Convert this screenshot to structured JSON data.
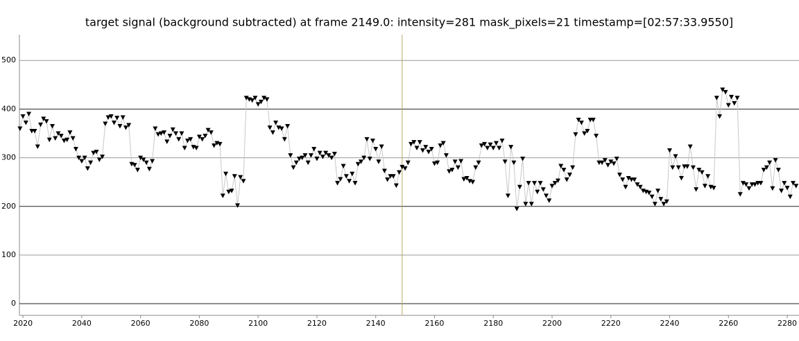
{
  "chart_data": {
    "type": "line",
    "title": "target signal (background subtracted) at frame 2149.0: intensity=281 mask_pixels=21 timestamp=[02:57:33.9550]",
    "x": [
      2019,
      2020,
      2021,
      2022,
      2023,
      2024,
      2025,
      2026,
      2027,
      2028,
      2029,
      2030,
      2031,
      2032,
      2033,
      2034,
      2035,
      2036,
      2037,
      2038,
      2039,
      2040,
      2041,
      2042,
      2043,
      2044,
      2045,
      2046,
      2047,
      2048,
      2049,
      2050,
      2051,
      2052,
      2053,
      2054,
      2055,
      2056,
      2057,
      2058,
      2059,
      2060,
      2061,
      2062,
      2063,
      2064,
      2065,
      2066,
      2067,
      2068,
      2069,
      2070,
      2071,
      2072,
      2073,
      2074,
      2075,
      2076,
      2077,
      2078,
      2079,
      2080,
      2081,
      2082,
      2083,
      2084,
      2085,
      2086,
      2087,
      2088,
      2089,
      2090,
      2091,
      2092,
      2093,
      2094,
      2095,
      2096,
      2097,
      2098,
      2099,
      2100,
      2101,
      2102,
      2103,
      2104,
      2105,
      2106,
      2107,
      2108,
      2109,
      2110,
      2111,
      2112,
      2113,
      2114,
      2115,
      2116,
      2117,
      2118,
      2119,
      2120,
      2121,
      2122,
      2123,
      2124,
      2125,
      2126,
      2127,
      2128,
      2129,
      2130,
      2131,
      2132,
      2133,
      2134,
      2135,
      2136,
      2137,
      2138,
      2139,
      2140,
      2141,
      2142,
      2143,
      2144,
      2145,
      2146,
      2147,
      2148,
      2149,
      2150,
      2151,
      2152,
      2153,
      2154,
      2155,
      2156,
      2157,
      2158,
      2159,
      2160,
      2161,
      2162,
      2163,
      2164,
      2165,
      2166,
      2167,
      2168,
      2169,
      2170,
      2171,
      2172,
      2173,
      2174,
      2175,
      2176,
      2177,
      2178,
      2179,
      2180,
      2181,
      2182,
      2183,
      2184,
      2185,
      2186,
      2187,
      2188,
      2189,
      2190,
      2191,
      2192,
      2193,
      2194,
      2195,
      2196,
      2197,
      2198,
      2199,
      2200,
      2201,
      2202,
      2203,
      2204,
      2205,
      2206,
      2207,
      2208,
      2209,
      2210,
      2211,
      2212,
      2213,
      2214,
      2215,
      2216,
      2217,
      2218,
      2219,
      2220,
      2221,
      2222,
      2223,
      2224,
      2225,
      2226,
      2227,
      2228,
      2229,
      2230,
      2231,
      2232,
      2233,
      2234,
      2235,
      2236,
      2237,
      2238,
      2239,
      2240,
      2241,
      2242,
      2243,
      2244,
      2245,
      2246,
      2247,
      2248,
      2249,
      2250,
      2251,
      2252,
      2253,
      2254,
      2255,
      2256,
      2257,
      2258,
      2259,
      2260,
      2261,
      2262,
      2263,
      2264,
      2265,
      2266,
      2267,
      2268,
      2269,
      2270,
      2271,
      2272,
      2273,
      2274,
      2275,
      2276,
      2277,
      2278,
      2279,
      2280,
      2281,
      2282,
      2283
    ],
    "series": [
      {
        "color": "#000000",
        "line_color": "#c8c8c8",
        "values": [
          360,
          385,
          372,
          390,
          355,
          355,
          323,
          368,
          380,
          375,
          337,
          365,
          340,
          350,
          345,
          335,
          337,
          352,
          340,
          318,
          300,
          293,
          300,
          278,
          290,
          310,
          312,
          296,
          302,
          370,
          383,
          385,
          372,
          382,
          365,
          383,
          362,
          367,
          287,
          285,
          275,
          300,
          296,
          290,
          277,
          293,
          360,
          348,
          350,
          352,
          333,
          345,
          358,
          350,
          338,
          350,
          320,
          335,
          338,
          322,
          320,
          343,
          338,
          345,
          357,
          352,
          325,
          330,
          328,
          222,
          267,
          230,
          232,
          262,
          202,
          260,
          252,
          423,
          420,
          418,
          423,
          410,
          415,
          423,
          420,
          362,
          352,
          372,
          362,
          360,
          338,
          365,
          305,
          280,
          290,
          298,
          300,
          305,
          290,
          305,
          318,
          298,
          310,
          302,
          310,
          305,
          300,
          308,
          248,
          256,
          283,
          262,
          252,
          267,
          248,
          287,
          292,
          300,
          338,
          298,
          335,
          318,
          292,
          323,
          273,
          255,
          262,
          262,
          243,
          270,
          281,
          278,
          290,
          328,
          332,
          320,
          332,
          315,
          322,
          312,
          318,
          288,
          290,
          325,
          330,
          305,
          272,
          275,
          292,
          280,
          293,
          256,
          258,
          252,
          250,
          280,
          290,
          325,
          328,
          320,
          327,
          320,
          330,
          320,
          335,
          292,
          222,
          322,
          290,
          195,
          240,
          298,
          205,
          248,
          205,
          248,
          230,
          248,
          235,
          222,
          212,
          242,
          248,
          253,
          283,
          275,
          255,
          265,
          280,
          348,
          378,
          372,
          350,
          355,
          378,
          378,
          345,
          290,
          290,
          295,
          285,
          292,
          288,
          298,
          265,
          255,
          240,
          258,
          255,
          255,
          245,
          240,
          232,
          230,
          228,
          220,
          205,
          232,
          215,
          205,
          210,
          315,
          280,
          303,
          280,
          258,
          282,
          282,
          323,
          280,
          235,
          275,
          270,
          242,
          262,
          240,
          238,
          423,
          385,
          440,
          435,
          408,
          425,
          412,
          423,
          225,
          248,
          245,
          237,
          245,
          245,
          248,
          248,
          275,
          280,
          290,
          237,
          295,
          275,
          232,
          248,
          238,
          220,
          248,
          242
        ]
      }
    ],
    "xlim": [
      2018.8,
      2284
    ],
    "ylim": [
      -24,
      553
    ],
    "xticks": [
      2020,
      2040,
      2060,
      2080,
      2100,
      2120,
      2140,
      2160,
      2180,
      2200,
      2220,
      2240,
      2260,
      2280
    ],
    "yticks": [
      0,
      100,
      200,
      300,
      400,
      500
    ],
    "grid": true,
    "cursor_x": 2149,
    "cursor_color": "#b8a860"
  }
}
